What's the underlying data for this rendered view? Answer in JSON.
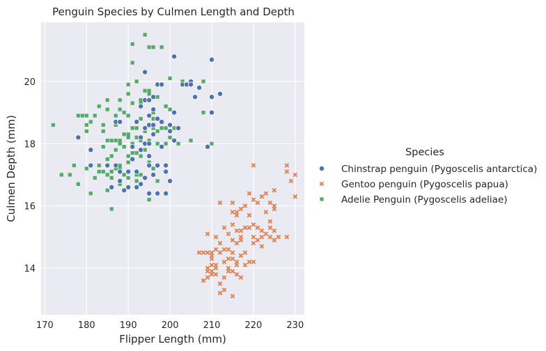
{
  "chart_data": {
    "type": "scatter",
    "title": "Penguin Species by Culmen Length and Depth",
    "xlabel": "Flipper Length (mm)",
    "ylabel": "Culmen Depth (mm)",
    "xlim": [
      169.1,
      232.2
    ],
    "ylim": [
      12.5,
      21.9
    ],
    "xticks": [
      170,
      180,
      190,
      200,
      210,
      220,
      230
    ],
    "yticks": [
      14,
      16,
      18,
      20
    ],
    "grid": true,
    "background": "#eaeaf2",
    "legend": {
      "title": "Species",
      "placement": "right"
    },
    "series": [
      {
        "name": "Chinstrap penguin (Pygoscelis antarctica)",
        "marker": "circle",
        "color": "#4c72b0",
        "points": [
          [
            178,
            18.2
          ],
          [
            181,
            17.3
          ],
          [
            181,
            17.8
          ],
          [
            185,
            17.3
          ],
          [
            186,
            16.6
          ],
          [
            187,
            18.7
          ],
          [
            187,
            17.3
          ],
          [
            188,
            18.7
          ],
          [
            188,
            16.8
          ],
          [
            188,
            17.1
          ],
          [
            189,
            16.5
          ],
          [
            190,
            17.1
          ],
          [
            190,
            16.6
          ],
          [
            191,
            17.9
          ],
          [
            191,
            17.5
          ],
          [
            192,
            16.6
          ],
          [
            192,
            17.1
          ],
          [
            192,
            18.7
          ],
          [
            193,
            17.8
          ],
          [
            193,
            18.2
          ],
          [
            193,
            19.2
          ],
          [
            194,
            18.0
          ],
          [
            194,
            18.5
          ],
          [
            194,
            19.4
          ],
          [
            194,
            20.3
          ],
          [
            194,
            16.9
          ],
          [
            195,
            17.6
          ],
          [
            195,
            18.0
          ],
          [
            195,
            18.6
          ],
          [
            195,
            18.9
          ],
          [
            195,
            19.4
          ],
          [
            195,
            16.4
          ],
          [
            195,
            17.3
          ],
          [
            196,
            17.0
          ],
          [
            196,
            18.3
          ],
          [
            196,
            18.6
          ],
          [
            196,
            19.5
          ],
          [
            196,
            19.1
          ],
          [
            197,
            17.3
          ],
          [
            197,
            18.8
          ],
          [
            197,
            19.9
          ],
          [
            198,
            17.9
          ],
          [
            198,
            18.7
          ],
          [
            198,
            19.9
          ],
          [
            199,
            17.3
          ],
          [
            199,
            16.4
          ],
          [
            199,
            17.1
          ],
          [
            200,
            18.4
          ],
          [
            200,
            16.8
          ],
          [
            201,
            19.0
          ],
          [
            201,
            20.8
          ],
          [
            201,
            18.1
          ],
          [
            201,
            18.1
          ],
          [
            202,
            18.5
          ],
          [
            203,
            19.9
          ],
          [
            204,
            19.9
          ],
          [
            205,
            20.0
          ],
          [
            205,
            19.9
          ],
          [
            206,
            19.5
          ],
          [
            207,
            19.8
          ],
          [
            210,
            19.5
          ],
          [
            210,
            20.7
          ],
          [
            210,
            19.0
          ],
          [
            212,
            19.6
          ],
          [
            209,
            17.9
          ],
          [
            197,
            16.4
          ],
          [
            193,
            16.7
          ],
          [
            200,
            18.6
          ]
        ]
      },
      {
        "name": "Gentoo penguin (Pygoscelis papua)",
        "marker": "x",
        "color": "#dd8452",
        "points": [
          [
            207,
            14.5
          ],
          [
            208,
            14.5
          ],
          [
            208,
            13.6
          ],
          [
            209,
            13.7
          ],
          [
            209,
            14.0
          ],
          [
            209,
            14.5
          ],
          [
            209,
            15.1
          ],
          [
            209,
            13.9
          ],
          [
            210,
            14.5
          ],
          [
            210,
            13.9
          ],
          [
            210,
            14.1
          ],
          [
            210,
            13.8
          ],
          [
            210,
            14.3
          ],
          [
            210,
            14.4
          ],
          [
            211,
            14.6
          ],
          [
            211,
            13.8
          ],
          [
            211,
            14.1
          ],
          [
            211,
            14.0
          ],
          [
            211,
            15.0
          ],
          [
            212,
            14.5
          ],
          [
            212,
            13.2
          ],
          [
            212,
            13.5
          ],
          [
            212,
            14.8
          ],
          [
            212,
            16.1
          ],
          [
            213,
            14.6
          ],
          [
            213,
            15.3
          ],
          [
            213,
            14.2
          ],
          [
            213,
            13.7
          ],
          [
            213,
            13.3
          ],
          [
            214,
            14.0
          ],
          [
            214,
            15.1
          ],
          [
            214,
            14.3
          ],
          [
            214,
            13.9
          ],
          [
            214,
            14.6
          ],
          [
            215,
            14.9
          ],
          [
            215,
            15.4
          ],
          [
            215,
            13.9
          ],
          [
            215,
            14.5
          ],
          [
            215,
            15.8
          ],
          [
            215,
            13.1
          ],
          [
            215,
            14.3
          ],
          [
            215,
            16.1
          ],
          [
            216,
            15.2
          ],
          [
            216,
            14.2
          ],
          [
            216,
            14.8
          ],
          [
            216,
            15.8
          ],
          [
            216,
            13.8
          ],
          [
            216,
            14.1
          ],
          [
            217,
            14.9
          ],
          [
            217,
            15.0
          ],
          [
            217,
            14.4
          ],
          [
            217,
            13.7
          ],
          [
            217,
            15.2
          ],
          [
            217,
            15.9
          ],
          [
            218,
            14.5
          ],
          [
            218,
            15.3
          ],
          [
            218,
            16.0
          ],
          [
            218,
            14.1
          ],
          [
            219,
            15.3
          ],
          [
            219,
            14.2
          ],
          [
            219,
            15.7
          ],
          [
            220,
            14.2
          ],
          [
            220,
            15.0
          ],
          [
            220,
            16.2
          ],
          [
            220,
            15.4
          ],
          [
            220,
            14.8
          ],
          [
            221,
            15.3
          ],
          [
            221,
            14.9
          ],
          [
            221,
            16.1
          ],
          [
            222,
            15.2
          ],
          [
            222,
            15.0
          ],
          [
            222,
            14.7
          ],
          [
            222,
            16.3
          ],
          [
            223,
            15.8
          ],
          [
            223,
            15.1
          ],
          [
            223,
            16.4
          ],
          [
            224,
            15.0
          ],
          [
            224,
            15.3
          ],
          [
            224,
            16.1
          ],
          [
            224,
            15.5
          ],
          [
            225,
            16.5
          ],
          [
            225,
            15.2
          ],
          [
            225,
            14.9
          ],
          [
            225,
            15.9
          ],
          [
            225,
            16.0
          ],
          [
            226,
            15.0
          ],
          [
            228,
            17.3
          ],
          [
            228,
            17.1
          ],
          [
            228,
            15.0
          ],
          [
            229,
            16.8
          ],
          [
            230,
            17.0
          ],
          [
            230,
            16.3
          ],
          [
            220,
            17.3
          ],
          [
            216,
            15.7
          ],
          [
            219,
            16.4
          ]
        ]
      },
      {
        "name": "Adelie Penguin (Pygoscelis adeliae)",
        "marker": "square",
        "color": "#55a868",
        "points": [
          [
            172,
            18.6
          ],
          [
            174,
            17.0
          ],
          [
            176,
            17.0
          ],
          [
            178,
            16.7
          ],
          [
            178,
            18.9
          ],
          [
            179,
            18.9
          ],
          [
            180,
            18.9
          ],
          [
            180,
            17.2
          ],
          [
            180,
            18.6
          ],
          [
            180,
            18.4
          ],
          [
            181,
            18.7
          ],
          [
            181,
            17.8
          ],
          [
            181,
            16.4
          ],
          [
            182,
            18.9
          ],
          [
            182,
            16.9
          ],
          [
            183,
            19.2
          ],
          [
            183,
            17.3
          ],
          [
            184,
            18.6
          ],
          [
            184,
            17.1
          ],
          [
            184,
            17.9
          ],
          [
            184,
            18.4
          ],
          [
            185,
            16.5
          ],
          [
            185,
            17.0
          ],
          [
            185,
            18.1
          ],
          [
            185,
            19.4
          ],
          [
            185,
            17.5
          ],
          [
            185,
            19.1
          ],
          [
            186,
            18.1
          ],
          [
            186,
            17.1
          ],
          [
            186,
            15.9
          ],
          [
            186,
            17.6
          ],
          [
            186,
            16.9
          ],
          [
            187,
            18.1
          ],
          [
            187,
            17.2
          ],
          [
            187,
            18.6
          ],
          [
            187,
            17.8
          ],
          [
            187,
            18.9
          ],
          [
            188,
            17.2
          ],
          [
            188,
            16.7
          ],
          [
            188,
            18.1
          ],
          [
            188,
            17.3
          ],
          [
            188,
            19.1
          ],
          [
            188,
            18.0
          ],
          [
            189,
            17.9
          ],
          [
            189,
            18.3
          ],
          [
            189,
            17.0
          ],
          [
            189,
            19.0
          ],
          [
            190,
            17.6
          ],
          [
            190,
            18.2
          ],
          [
            190,
            17.1
          ],
          [
            190,
            18.9
          ],
          [
            190,
            18.3
          ],
          [
            190,
            19.9
          ],
          [
            190,
            17.4
          ],
          [
            190,
            16.9
          ],
          [
            190,
            19.6
          ],
          [
            191,
            17.9
          ],
          [
            191,
            17.7
          ],
          [
            191,
            18.0
          ],
          [
            191,
            19.3
          ],
          [
            191,
            21.2
          ],
          [
            191,
            20.6
          ],
          [
            191,
            18.5
          ],
          [
            192,
            18.2
          ],
          [
            192,
            16.8
          ],
          [
            192,
            17.7
          ],
          [
            192,
            18.5
          ],
          [
            192,
            20.0
          ],
          [
            192,
            17.0
          ],
          [
            193,
            18.8
          ],
          [
            193,
            19.4
          ],
          [
            193,
            17.6
          ],
          [
            193,
            19.3
          ],
          [
            193,
            17.0
          ],
          [
            193,
            18.1
          ],
          [
            194,
            18.4
          ],
          [
            194,
            17.8
          ],
          [
            194,
            21.5
          ],
          [
            195,
            18.1
          ],
          [
            195,
            19.7
          ],
          [
            195,
            17.4
          ],
          [
            195,
            19.6
          ],
          [
            195,
            21.1
          ],
          [
            195,
            16.2
          ],
          [
            196,
            18.8
          ],
          [
            196,
            18.5
          ],
          [
            196,
            21.1
          ],
          [
            196,
            19.0
          ],
          [
            196,
            17.2
          ],
          [
            197,
            19.5
          ],
          [
            197,
            18.0
          ],
          [
            197,
            18.4
          ],
          [
            197,
            16.8
          ],
          [
            198,
            18.5
          ],
          [
            198,
            21.1
          ],
          [
            198,
            17.9
          ],
          [
            199,
            18.5
          ],
          [
            199,
            18.0
          ],
          [
            200,
            20.1
          ],
          [
            200,
            18.2
          ],
          [
            200,
            19.1
          ],
          [
            201,
            18.5
          ],
          [
            202,
            18.5
          ],
          [
            203,
            20.0
          ],
          [
            205,
            18.1
          ],
          [
            208,
            19.0
          ],
          [
            210,
            18.0
          ],
          [
            177,
            17.3
          ],
          [
            183,
            17.1
          ],
          [
            188,
            19.4
          ],
          [
            194,
            19.7
          ],
          [
            196,
            19.5
          ],
          [
            199,
            19.2
          ],
          [
            202,
            18.0
          ],
          [
            208,
            20.0
          ]
        ]
      }
    ]
  }
}
